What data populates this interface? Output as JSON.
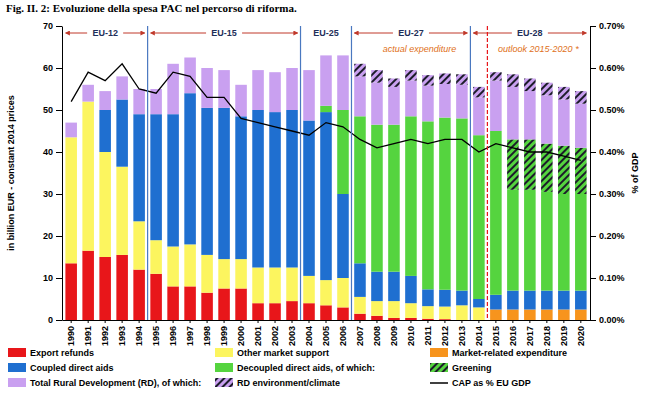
{
  "chart_data": {
    "type": "bar",
    "title": "Fig. II. 2: Evoluzione della spesa PAC nel percorso di riforma.",
    "ylabel": "in billion EUR - constant 2014 prices",
    "y2label": "% of GDP",
    "stacked": true,
    "grid": false,
    "legend": "bottom",
    "categories": [
      "1990",
      "1991",
      "1992",
      "1993",
      "1994",
      "1995",
      "1996",
      "1997",
      "1998",
      "1999",
      "2000",
      "2001",
      "2002",
      "2003",
      "2004",
      "2005",
      "2006",
      "2007",
      "2008",
      "2009",
      "2010",
      "2011",
      "2012",
      "2013",
      "2014",
      "2015",
      "2016",
      "2017",
      "2018",
      "2019",
      "2020"
    ],
    "ylim": [
      0,
      70
    ],
    "yticks": [
      0,
      10,
      20,
      30,
      40,
      50,
      60,
      70
    ],
    "y2lim": [
      0,
      0.7
    ],
    "y2ticks": [
      {
        "value": 0,
        "label": "0.00%"
      },
      {
        "value": 0.1,
        "label": "0.10%"
      },
      {
        "value": 0.2,
        "label": "0.20%"
      },
      {
        "value": 0.3,
        "label": "0.30%"
      },
      {
        "value": 0.4,
        "label": "0.40%"
      },
      {
        "value": 0.5,
        "label": "0.50%"
      },
      {
        "value": 0.6,
        "label": "0.60%"
      },
      {
        "value": 0.7,
        "label": "0.70%"
      }
    ],
    "periods": [
      {
        "text": "EU-12",
        "start": "1990",
        "end": "1994"
      },
      {
        "text": "EU-15",
        "start": "1995",
        "end": "2003"
      },
      {
        "text": "EU-25",
        "start": "2004",
        "end": "2006"
      },
      {
        "text": "EU-27",
        "start": "2007",
        "end": "2013"
      },
      {
        "text": "EU-28",
        "start": "2014",
        "end": "2020"
      }
    ],
    "annotations": [
      {
        "text": "actual expenditure",
        "start": "2007",
        "end": "2014"
      },
      {
        "text": "outlook 2015-2020 *",
        "start": "2015",
        "end": "2020"
      }
    ],
    "series": [
      {
        "name": "Export refunds",
        "color": "#e8161a",
        "values": [
          13.5,
          16.5,
          15,
          15.5,
          12,
          11,
          8,
          8,
          6.5,
          7.5,
          7.5,
          4,
          4,
          4.5,
          4,
          3.5,
          3,
          1.5,
          1,
          0.5,
          0.5,
          0.3,
          0.2,
          0,
          0,
          0,
          0,
          0,
          0,
          0,
          0
        ]
      },
      {
        "name": "Other market support",
        "color": "#fcf55f",
        "values": [
          30,
          35.5,
          25,
          21,
          11.5,
          8,
          9.5,
          10,
          9,
          7,
          7,
          8.5,
          8.5,
          8,
          6.5,
          6,
          7,
          4,
          3.5,
          4,
          3.5,
          3,
          3,
          3.5,
          3,
          0,
          0,
          0,
          0,
          0,
          0
        ]
      },
      {
        "name": "Market-related expenditure",
        "color": "#f7941d",
        "values": [
          0,
          0,
          0,
          0,
          0,
          0,
          0,
          0,
          0,
          0,
          0,
          0,
          0,
          0,
          0,
          0,
          0,
          0,
          0,
          0,
          0,
          0,
          0,
          0,
          0,
          2.5,
          2.5,
          2.5,
          2.5,
          2.5,
          2.5
        ]
      },
      {
        "name": "Coupled direct aids",
        "color": "#1f6fd0",
        "values": [
          0,
          0,
          10,
          16,
          25.5,
          30,
          31.5,
          36,
          35,
          36,
          34,
          37.5,
          37,
          37.5,
          37,
          40,
          20,
          8,
          7,
          7,
          6.5,
          4,
          4,
          3.5,
          2,
          3.5,
          4.5,
          4.5,
          4.5,
          4.5,
          4.5
        ]
      },
      {
        "name": "Decoupled direct aids, of which:",
        "color": "#55d43f",
        "values": [
          0,
          0,
          0,
          0,
          0,
          0,
          0,
          0,
          0,
          0,
          0,
          0,
          0,
          0,
          0,
          1.5,
          20,
          35,
          35,
          35,
          38,
          40,
          41,
          41,
          39,
          39,
          24,
          24,
          23.5,
          23,
          23
        ]
      },
      {
        "name": "Greening",
        "color": "#55d43f",
        "line_style": "hatched",
        "values": [
          0,
          0,
          0,
          0,
          0,
          0,
          0,
          0,
          0,
          0,
          0,
          0,
          0,
          0,
          0,
          0,
          0,
          0,
          0,
          0,
          0,
          0,
          0,
          0,
          0,
          0,
          12,
          12,
          11.5,
          11.5,
          11
        ]
      },
      {
        "name": "Total Rural Development (RD), of which:",
        "color": "#c9a0f0",
        "values": [
          3.5,
          4,
          4.5,
          5.5,
          6,
          6,
          12,
          8.5,
          9.5,
          9,
          7.5,
          9.5,
          9.5,
          10,
          12,
          12,
          13,
          9.5,
          10,
          9,
          8.5,
          8.5,
          8,
          8,
          9,
          12,
          12.5,
          11.5,
          11.5,
          11,
          10.5
        ]
      },
      {
        "name": "RD environment/climate",
        "color": "#c9a0f0",
        "line_style": "hatched",
        "values": [
          0,
          0,
          0,
          0,
          0,
          0,
          0,
          0,
          0,
          0,
          0,
          0,
          0,
          0,
          0,
          0,
          0,
          3,
          3,
          2,
          2.5,
          2.5,
          2.5,
          2.5,
          2.5,
          2,
          3,
          3,
          3,
          3,
          3
        ]
      },
      {
        "name": "CAP as % EU GDP",
        "color": "#000000",
        "type": "line",
        "axis": "y2",
        "values": [
          0.52,
          0.59,
          0.57,
          0.61,
          0.55,
          0.54,
          0.59,
          0.58,
          0.53,
          0.53,
          0.48,
          0.47,
          0.46,
          0.45,
          0.44,
          0.47,
          0.46,
          0.43,
          0.41,
          0.42,
          0.43,
          0.42,
          0.43,
          0.43,
          0.4,
          0.42,
          0.41,
          0.4,
          0.4,
          0.39,
          0.38
        ]
      }
    ]
  }
}
